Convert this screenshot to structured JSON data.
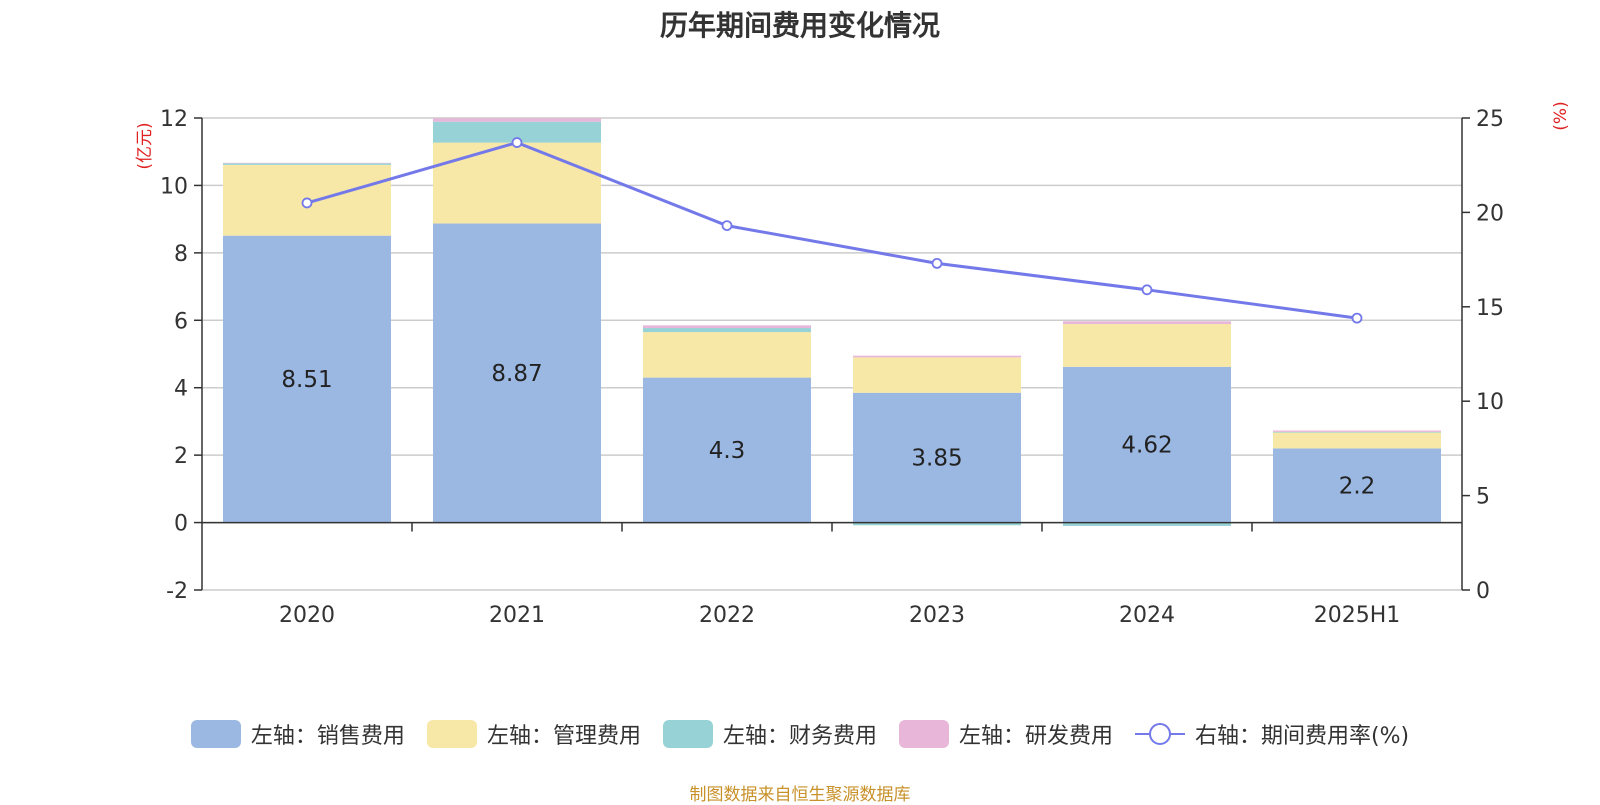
{
  "chart_data": {
    "type": "bar",
    "title": "历年期间费用变化情况",
    "categories": [
      "2020",
      "2021",
      "2022",
      "2023",
      "2024",
      "2025H1"
    ],
    "left_axis": {
      "unit_label": "(亿元)",
      "ylim": [
        -2,
        12
      ],
      "ticks": [
        -2,
        0,
        2,
        4,
        6,
        8,
        10,
        12
      ]
    },
    "right_axis": {
      "unit_label": "(%)",
      "ylim": [
        0,
        25
      ],
      "ticks": [
        0,
        5,
        10,
        15,
        20,
        25
      ]
    },
    "series": [
      {
        "name": "左轴：销售费用",
        "axis": "left",
        "color": "#9bb8e3",
        "values": [
          8.51,
          8.87,
          4.3,
          3.85,
          4.62,
          2.2
        ],
        "labels": [
          "8.51",
          "8.87",
          "4.3",
          "3.85",
          "4.62",
          "2.2"
        ]
      },
      {
        "name": "左轴：管理费用",
        "axis": "left",
        "color": "#f8e8a8",
        "values": [
          2.1,
          2.4,
          1.35,
          1.05,
          1.27,
          0.47
        ]
      },
      {
        "name": "左轴：财务费用",
        "axis": "left",
        "color": "#97d3d6",
        "values": [
          0.05,
          0.62,
          0.12,
          -0.08,
          -0.1,
          0.02
        ]
      },
      {
        "name": "左轴：研发费用",
        "axis": "left",
        "color": "#e8b6d8",
        "values": [
          0.01,
          0.1,
          0.08,
          0.05,
          0.08,
          0.04
        ]
      },
      {
        "name": "右轴：期间费用率(%)",
        "axis": "right",
        "type": "line",
        "color": "#7479e9",
        "values": [
          20.5,
          23.7,
          19.3,
          17.3,
          15.9,
          14.4
        ]
      }
    ],
    "grid": true,
    "legend_position": "bottom"
  },
  "source_note": "制图数据来自恒生聚源数据库"
}
